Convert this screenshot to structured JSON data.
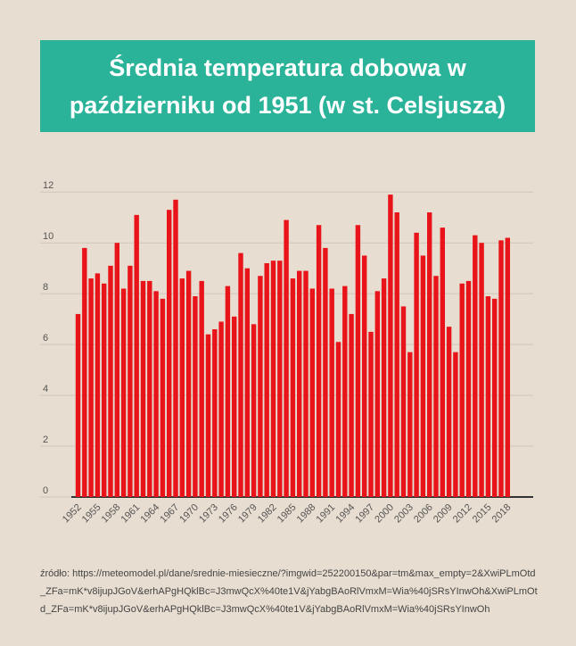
{
  "chart_data": {
    "type": "bar",
    "title": "Średnia temperatura dobowa w październiku od 1951 (w st. Celsjusza)",
    "source": "źródło: https://meteomodel.pl/dane/srednie-miesieczne/?imgwid=252200150&par=tm&max_empty=2&XwiPLmOtd_ZFa=mK*v8ijupJGoV&erhAPgHQklBc=J3mwQcX%40te1V&jYabgBAoRlVmxM=Wia%40jSRsYInwOh&XwiPLmOtd_ZFa=mK*v8ijupJGoV&erhAPgHQklBc=J3mwQcX%40te1V&jYabgBAoRlVmxM=Wia%40jSRsYInwOh",
    "categories": [
      "1952",
      null,
      null,
      "1955",
      null,
      null,
      "1958",
      null,
      null,
      "1961",
      null,
      null,
      "1964",
      null,
      null,
      "1967",
      null,
      null,
      "1970",
      null,
      null,
      "1973",
      null,
      null,
      "1976",
      null,
      null,
      "1979",
      null,
      null,
      "1982",
      null,
      null,
      "1985",
      null,
      null,
      "1988",
      null,
      null,
      "1991",
      null,
      null,
      "1994",
      null,
      null,
      "1997",
      null,
      null,
      "2000",
      null,
      null,
      "2003",
      null,
      null,
      "2006",
      null,
      null,
      "2009",
      null,
      null,
      "2012",
      null,
      null,
      "2015",
      null,
      null,
      "2018"
    ],
    "values": [
      7.2,
      9.8,
      8.6,
      8.8,
      8.4,
      9.1,
      10.0,
      8.2,
      9.1,
      11.1,
      8.5,
      8.5,
      8.1,
      7.8,
      11.3,
      11.7,
      8.6,
      8.9,
      7.9,
      8.5,
      6.4,
      6.6,
      6.9,
      8.3,
      7.1,
      9.6,
      9.0,
      6.8,
      8.7,
      9.2,
      9.3,
      9.3,
      10.9,
      8.6,
      8.9,
      8.9,
      8.2,
      10.7,
      9.8,
      8.2,
      6.1,
      8.3,
      7.2,
      10.7,
      9.5,
      6.5,
      8.1,
      8.6,
      11.9,
      11.2,
      7.5,
      5.7,
      10.4,
      9.5,
      11.2,
      8.7,
      10.6,
      6.7,
      5.7,
      8.4,
      8.5,
      10.3,
      10.0,
      7.9,
      7.8,
      10.1,
      10.2
    ],
    "color": "#e8141a",
    "ylim": [
      0,
      12.5
    ],
    "yticks": [
      0,
      2,
      4,
      6,
      8,
      10,
      12
    ],
    "grid": true
  }
}
